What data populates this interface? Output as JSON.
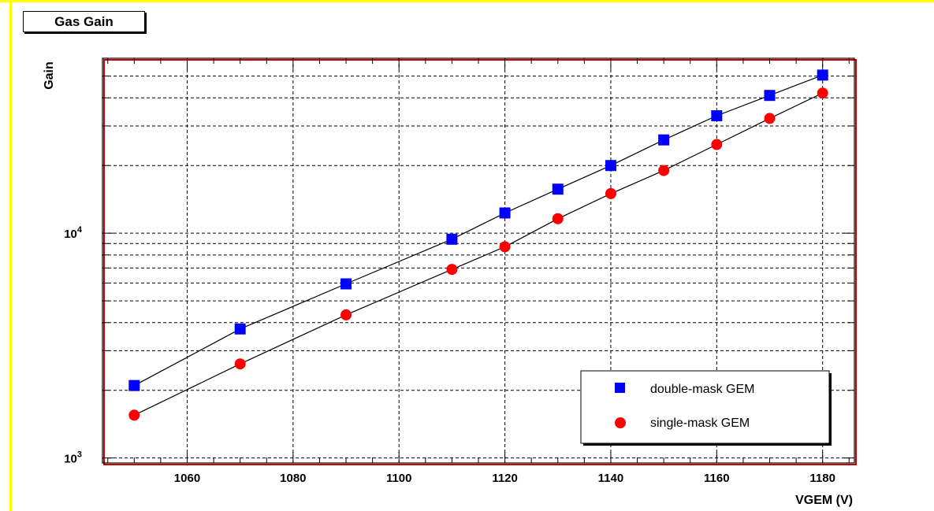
{
  "chart_data": {
    "type": "scatter",
    "title": "Gas Gain",
    "xlabel": "VGEM (V)",
    "ylabel": "Gain",
    "y_scale": "log",
    "grid": true,
    "legend_position": "bottom-right",
    "xlim": [
      1044,
      1186
    ],
    "ylim": [
      950,
      60000
    ],
    "x_ticks": [
      1060,
      1080,
      1100,
      1120,
      1140,
      1160,
      1180
    ],
    "y_ticks": [
      {
        "value": 1000,
        "base": "10",
        "exp": "3"
      },
      {
        "value": 10000,
        "base": "10",
        "exp": "4"
      }
    ],
    "series": [
      {
        "name": "double-mask GEM",
        "marker": "square",
        "color": "#0000ff",
        "x": [
          1050,
          1070,
          1090,
          1110,
          1120,
          1130,
          1140,
          1150,
          1160,
          1170,
          1180
        ],
        "y": [
          2100,
          3750,
          5950,
          9400,
          12300,
          15700,
          20000,
          26000,
          33300,
          41000,
          50500
        ]
      },
      {
        "name": "single-mask GEM",
        "marker": "circle",
        "color": "#ff0000",
        "x": [
          1050,
          1070,
          1090,
          1110,
          1120,
          1130,
          1140,
          1150,
          1160,
          1170,
          1180
        ],
        "y": [
          1550,
          2620,
          4330,
          6900,
          8700,
          11600,
          15000,
          19000,
          24800,
          32400,
          42000
        ]
      }
    ]
  }
}
